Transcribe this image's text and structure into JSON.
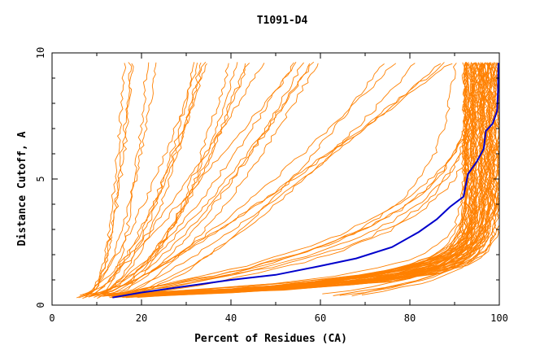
{
  "chart_data": {
    "type": "line",
    "title": "T1091-D4",
    "xlabel": "Percent of Residues (CA)",
    "ylabel": "Distance Cutoff, A",
    "xlim": [
      0,
      100
    ],
    "ylim": [
      0,
      10
    ],
    "x_ticks": [
      "0",
      "20",
      "40",
      "60",
      "80",
      "100"
    ],
    "y_ticks": [
      "0",
      "5",
      "10"
    ],
    "grid": false,
    "legend": "none",
    "colors": {
      "others": "#ff8000",
      "highlight": "#0000cc",
      "axis": "#000000"
    },
    "highlight_series": {
      "values": [
        [
          13.5,
          0.3
        ],
        [
          20,
          0.5
        ],
        [
          30,
          0.75
        ],
        [
          40,
          1.0
        ],
        [
          50,
          1.2
        ],
        [
          60,
          1.55
        ],
        [
          68,
          1.85
        ],
        [
          76,
          2.3
        ],
        [
          82,
          2.9
        ],
        [
          86,
          3.4
        ],
        [
          89,
          3.9
        ],
        [
          92,
          4.3
        ],
        [
          93,
          5.2
        ],
        [
          95,
          5.7
        ],
        [
          96.5,
          6.2
        ],
        [
          97,
          6.9
        ],
        [
          98.5,
          7.2
        ],
        [
          99.5,
          7.7
        ],
        [
          99.7,
          8.5
        ],
        [
          99.8,
          9.6
        ]
      ]
    },
    "series_groups": [
      {
        "pattern": "steep",
        "count": 5,
        "start_x": [
          5,
          9
        ],
        "end_x": [
          16,
          24
        ],
        "curve": 2.2
      },
      {
        "pattern": "steep",
        "count": 5,
        "start_x": [
          6,
          10
        ],
        "end_x": [
          28,
          36
        ],
        "curve": 1.8
      },
      {
        "pattern": "steep",
        "count": 5,
        "start_x": [
          7,
          12
        ],
        "end_x": [
          38,
          48
        ],
        "curve": 1.6
      },
      {
        "pattern": "mid",
        "count": 6,
        "start_x": [
          8,
          14
        ],
        "end_x": [
          50,
          66
        ],
        "curve": 1.4
      },
      {
        "pattern": "mid",
        "count": 6,
        "start_x": [
          9,
          16
        ],
        "end_x": [
          68,
          90
        ],
        "curve": 1.3
      },
      {
        "pattern": "convex",
        "count": 7,
        "start_x": [
          10,
          18
        ],
        "end_x": [
          88,
          100
        ],
        "curve": 4.0
      },
      {
        "pattern": "flat",
        "count": 55,
        "start_x": [
          12,
          20
        ],
        "end_x": [
          92,
          100
        ],
        "curve": 16
      },
      {
        "pattern": "late",
        "count": 5,
        "start_x": [
          60,
          75
        ],
        "end_x": [
          97,
          100
        ],
        "curve": 10
      }
    ]
  }
}
